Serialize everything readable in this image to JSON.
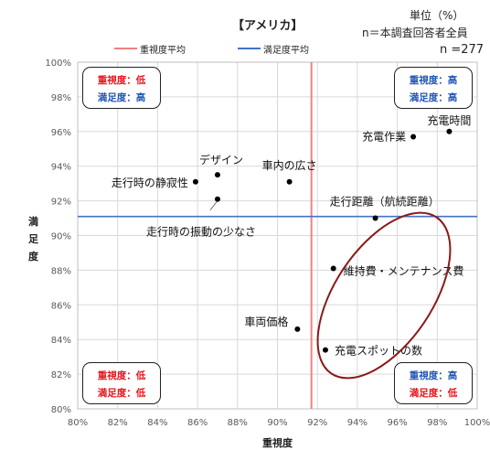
{
  "header": {
    "title": "【アメリカ】",
    "unit": "単位（%）",
    "base": "n＝本調査回答者全員",
    "n": "n =277"
  },
  "legend": {
    "importance_avg": "重視度平均",
    "satisfaction_avg": "満足度平均"
  },
  "quadrants": {
    "top_left": {
      "imp": "重視度：低",
      "sat": "満足度：高",
      "imp_color": "#e8141b",
      "sat_color": "#2156b5"
    },
    "top_right": {
      "imp": "重視度：高",
      "sat": "満足度：高",
      "imp_color": "#2156b5",
      "sat_color": "#2156b5"
    },
    "bottom_left": {
      "imp": "重視度：低",
      "sat": "満足度：低",
      "imp_color": "#e8141b",
      "sat_color": "#e8141b"
    },
    "bottom_right": {
      "imp": "重視度：高",
      "sat": "満足度：低",
      "imp_color": "#2156b5",
      "sat_color": "#e8141b"
    }
  },
  "chart_data": {
    "type": "scatter",
    "xlabel": "重視度",
    "ylabel": "満足度",
    "xlim": [
      80,
      100
    ],
    "ylim": [
      80,
      100
    ],
    "x_ticks": [
      "80%",
      "82%",
      "84%",
      "86%",
      "88%",
      "90%",
      "92%",
      "94%",
      "96%",
      "98%",
      "100%"
    ],
    "y_ticks": [
      "80%",
      "82%",
      "84%",
      "86%",
      "88%",
      "90%",
      "92%",
      "94%",
      "96%",
      "98%",
      "100%"
    ],
    "grid": true,
    "importance_avg": 91.7,
    "satisfaction_avg": 91.1,
    "importance_avg_color": "#f08080",
    "satisfaction_avg_color": "#4472c4",
    "points": [
      {
        "label": "充電時間",
        "x": 98.6,
        "y": 96.0
      },
      {
        "label": "充電作業",
        "x": 96.8,
        "y": 95.7
      },
      {
        "label": "デザイン",
        "x": 87.0,
        "y": 93.5
      },
      {
        "label": "車内の広さ",
        "x": 90.6,
        "y": 93.1
      },
      {
        "label": "走行時の静寂性",
        "x": 85.9,
        "y": 93.1
      },
      {
        "label": "走行時の振動の少なさ",
        "x": 87.0,
        "y": 92.1
      },
      {
        "label": "走行距離（航続距離）",
        "x": 94.9,
        "y": 91.0
      },
      {
        "label": "維持費・メンテナンス費",
        "x": 92.8,
        "y": 88.1
      },
      {
        "label": "車両価格",
        "x": 91.0,
        "y": 84.6
      },
      {
        "label": "充電スポットの数",
        "x": 92.4,
        "y": 83.4
      }
    ]
  }
}
